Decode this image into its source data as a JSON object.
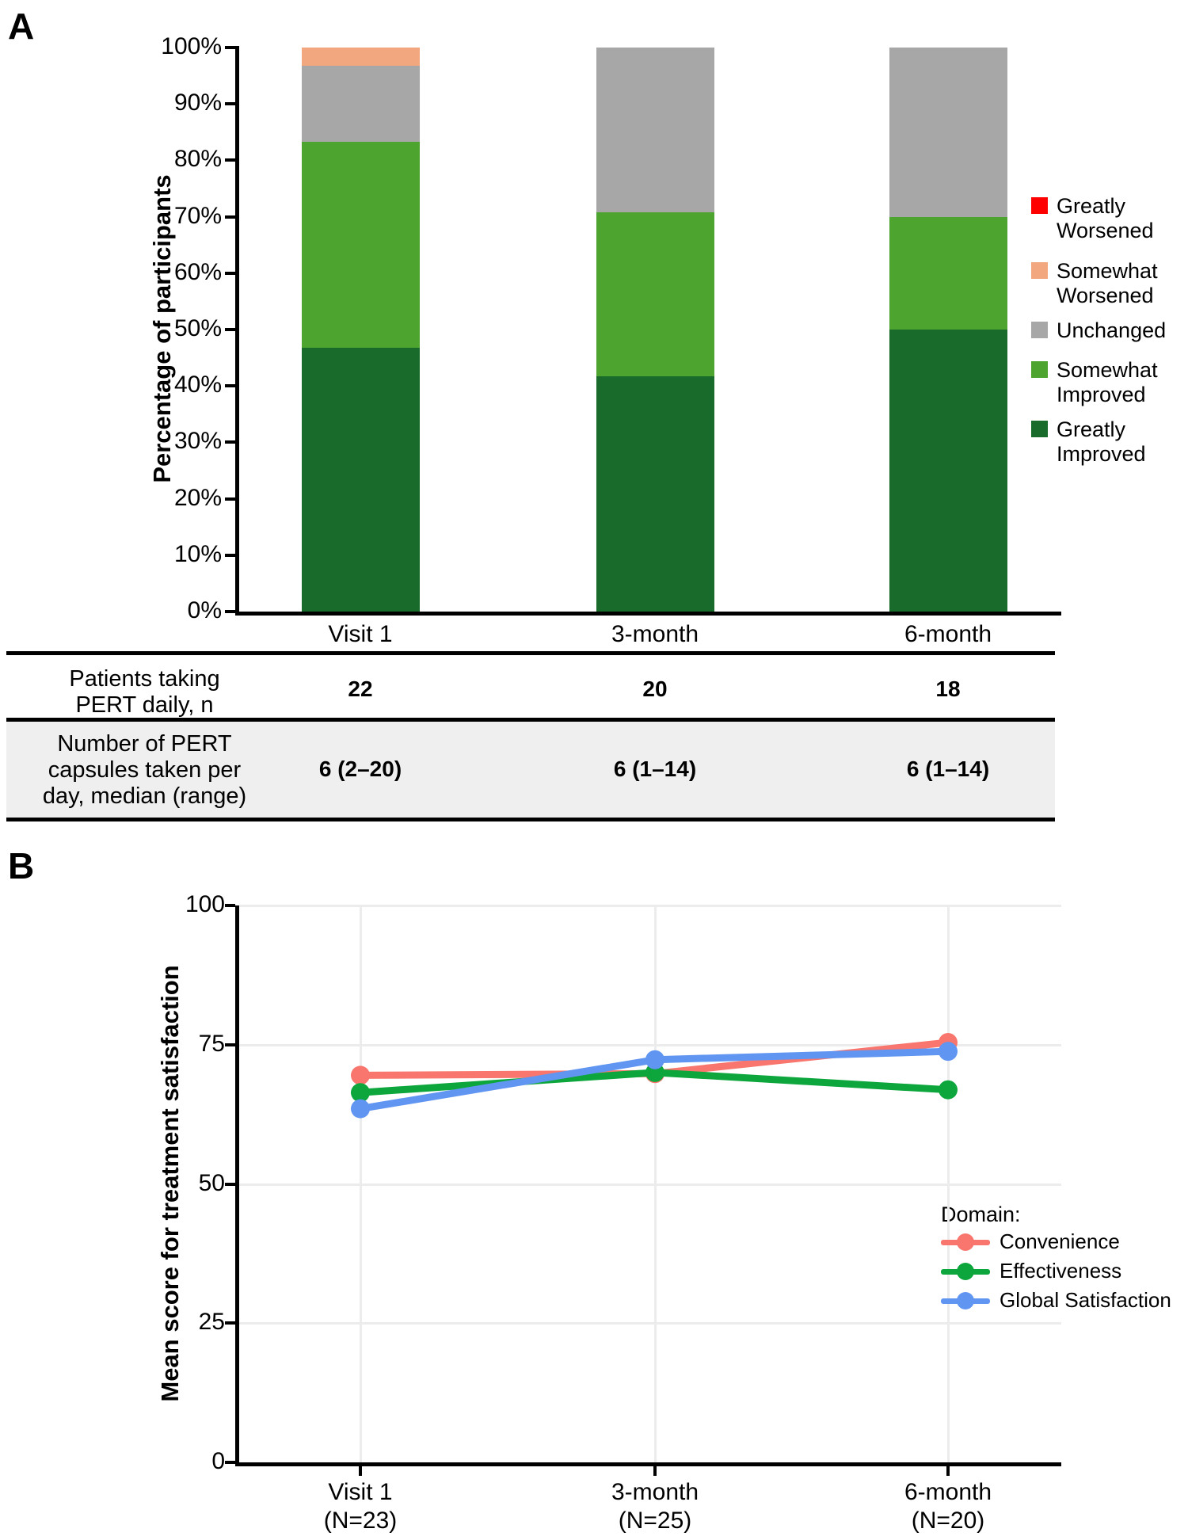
{
  "panel_a": {
    "label": "A",
    "chart_data": {
      "type": "bar",
      "subtype": "stacked-percentage",
      "title": "",
      "ylabel": "Percentage of participants",
      "xlabel": "",
      "ylim": [
        0,
        100
      ],
      "grid": false,
      "y_tick_labels": [
        "0%",
        "10%",
        "20%",
        "30%",
        "40%",
        "50%",
        "60%",
        "70%",
        "80%",
        "90%",
        "100%"
      ],
      "y_tick_values": [
        0,
        10,
        20,
        30,
        40,
        50,
        60,
        70,
        80,
        90,
        100
      ],
      "categories": [
        "Visit 1",
        "3-month",
        "6-month"
      ],
      "series": [
        {
          "name": "Greatly Improved",
          "color": "#186B2B",
          "values": [
            46.7,
            41.7,
            50.0
          ]
        },
        {
          "name": "Somewhat Improved",
          "color": "#4DA52F",
          "values": [
            36.6,
            29.1,
            20.0
          ]
        },
        {
          "name": "Unchanged",
          "color": "#A7A7A7",
          "values": [
            13.4,
            29.2,
            30.0
          ]
        },
        {
          "name": "Somewhat Worsened",
          "color": "#F2A77E",
          "values": [
            3.3,
            0.0,
            0.0
          ]
        },
        {
          "name": "Greatly Worsened",
          "color": "#FF0000",
          "values": [
            0.0,
            0.0,
            0.0
          ]
        }
      ],
      "legend_position": "right",
      "legend": [
        {
          "label": "Greatly\nWorsened",
          "color": "#FF0000"
        },
        {
          "label": "Somewhat\nWorsened",
          "color": "#F2A77E"
        },
        {
          "label": "Unchanged",
          "color": "#A7A7A7"
        },
        {
          "label": "Somewhat\nImproved",
          "color": "#4DA52F"
        },
        {
          "label": "Greatly\nImproved",
          "color": "#186B2B"
        }
      ]
    }
  },
  "table": {
    "rows": [
      {
        "label": "Patients taking\nPERT daily, n",
        "values": [
          "22",
          "20",
          "18"
        ],
        "shaded": false
      },
      {
        "label": "Number of PERT\ncapsules taken per\nday, median (range)",
        "values": [
          "6 (2–20)",
          "6 (1–14)",
          "6 (1–14)"
        ],
        "shaded": true
      }
    ]
  },
  "panel_b": {
    "label": "B",
    "chart_data": {
      "type": "line",
      "title": "",
      "ylabel": "Mean score for treatment satisfaction",
      "xlabel": "",
      "ylim": [
        0,
        100
      ],
      "grid": true,
      "y_tick_labels": [
        "0",
        "25",
        "50",
        "75",
        "100"
      ],
      "y_tick_values": [
        0,
        25,
        50,
        75,
        100
      ],
      "categories": [
        "Visit 1\n(N=23)",
        "3-month\n(N=25)",
        "6-month\n(N=20)"
      ],
      "legend_title": "Domain:",
      "legend_position": "right-inside",
      "series": [
        {
          "name": "Convenience",
          "color": "#F8766D",
          "values": [
            69.5,
            69.8,
            75.4
          ]
        },
        {
          "name": "Effectiveness",
          "color": "#0DA63C",
          "values": [
            66.4,
            70.0,
            66.9
          ]
        },
        {
          "name": "Global Satisfaction",
          "color": "#6195F2",
          "values": [
            63.5,
            72.3,
            73.8
          ]
        }
      ]
    }
  }
}
